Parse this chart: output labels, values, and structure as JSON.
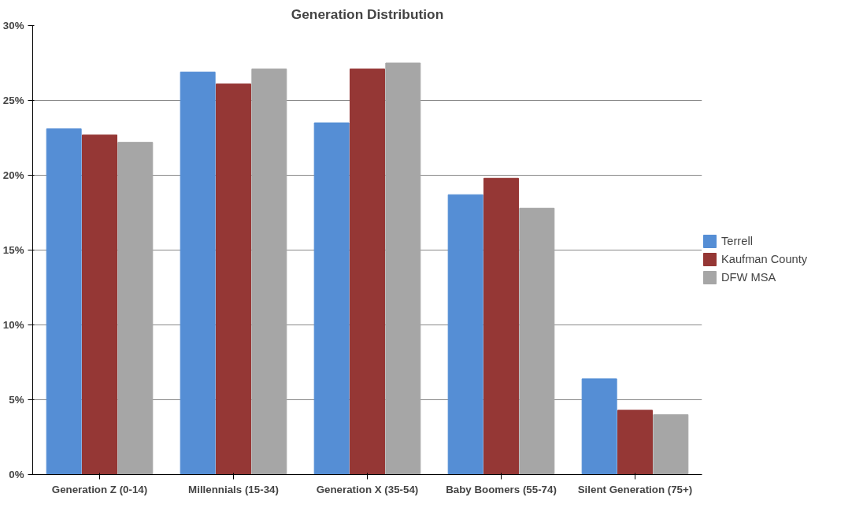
{
  "chart_data": {
    "type": "bar",
    "title": "Generation Distribution",
    "categories": [
      "Generation Z (0-14)",
      "Millennials (15-34)",
      "Generation X (35-54)",
      "Baby Boomers (55-74)",
      "Silent Generation (75+)"
    ],
    "series": [
      {
        "name": "Terrell",
        "color": "#558ed5",
        "values": [
          23.1,
          26.9,
          23.5,
          18.7,
          6.4
        ]
      },
      {
        "name": "Kaufman County",
        "color": "#953735",
        "values": [
          22.7,
          26.1,
          27.1,
          19.8,
          4.3
        ]
      },
      {
        "name": "DFW MSA",
        "color": "#a6a6a6",
        "values": [
          22.2,
          27.1,
          27.5,
          17.8,
          4.0
        ]
      }
    ],
    "ylim": [
      0,
      30
    ],
    "yticks": [
      {
        "value": 0,
        "label": "0%"
      },
      {
        "value": 5,
        "label": "5%"
      },
      {
        "value": 10,
        "label": "10%"
      },
      {
        "value": 15,
        "label": "15%"
      },
      {
        "value": 20,
        "label": "20%"
      },
      {
        "value": 25,
        "label": "25%"
      },
      {
        "value": 30,
        "label": "30%"
      }
    ],
    "grid": "y",
    "legend": "right"
  }
}
